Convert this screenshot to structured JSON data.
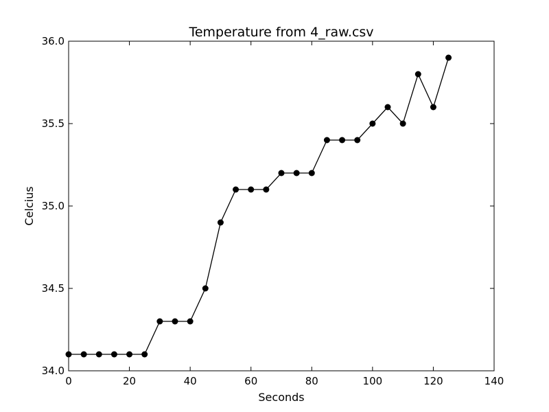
{
  "chart_data": {
    "type": "line",
    "title": "Temperature from 4_raw.csv",
    "xlabel": "Seconds",
    "ylabel": "Celcius",
    "xlim": [
      0,
      140
    ],
    "ylim": [
      34.0,
      36.0
    ],
    "xticks": [
      0,
      20,
      40,
      60,
      80,
      100,
      120,
      140
    ],
    "xtick_labels": [
      "0",
      "20",
      "40",
      "60",
      "80",
      "100",
      "120",
      "140"
    ],
    "yticks": [
      34.0,
      34.5,
      35.0,
      35.5,
      36.0
    ],
    "ytick_labels": [
      "34.0",
      "34.5",
      "35.0",
      "35.5",
      "36.0"
    ],
    "grid": false,
    "series": [
      {
        "color": "#000000",
        "marker": "circle",
        "x": [
          0,
          5,
          10,
          15,
          20,
          25,
          30,
          35,
          40,
          45,
          50,
          55,
          60,
          65,
          70,
          75,
          80,
          85,
          90,
          95,
          100,
          105,
          110,
          115,
          120,
          125
        ],
        "y": [
          34.1,
          34.1,
          34.1,
          34.1,
          34.1,
          34.1,
          34.3,
          34.3,
          34.3,
          34.5,
          34.9,
          35.1,
          35.1,
          35.1,
          35.2,
          35.2,
          35.2,
          35.4,
          35.4,
          35.4,
          35.5,
          35.6,
          35.5,
          35.8,
          35.6,
          35.9
        ]
      }
    ]
  }
}
